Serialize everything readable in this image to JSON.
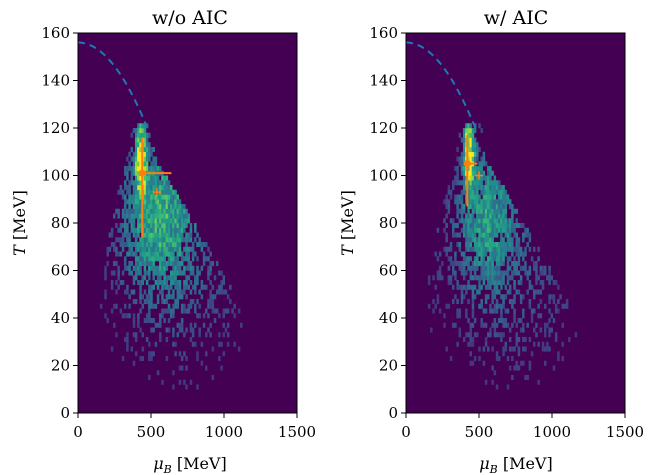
{
  "chart_data": [
    {
      "type": "heatmap",
      "title": "w/o AIC",
      "xlabel": "μ_B [MeV]",
      "ylabel": "T [MeV]",
      "xlim": [
        0,
        1500
      ],
      "ylim": [
        0,
        160
      ],
      "xticks": [
        0,
        500,
        1000,
        1500
      ],
      "yticks": [
        0,
        20,
        40,
        60,
        80,
        100,
        120,
        140,
        160
      ],
      "xtick_labels": [
        "0",
        "500",
        "1000",
        "1500"
      ],
      "ytick_labels": [
        "0",
        "20",
        "40",
        "60",
        "80",
        "100",
        "120",
        "140",
        "160"
      ],
      "colormap": "viridis",
      "background_color": "#440154",
      "peak": {
        "mu_B": 430,
        "T": 108
      },
      "crossover_curve": {
        "T0": 156,
        "mu_end": 475,
        "T_end": 120,
        "color": "#1f77b4",
        "style": "dashed"
      },
      "estimate_marker": {
        "mu_B": 440,
        "T": 101,
        "xerr": [
          20,
          200
        ],
        "yerr": [
          27,
          15
        ],
        "color": "#ff7f0e"
      },
      "true_marker": {
        "mu_B": 540,
        "T": 93,
        "color": "#ff7f0e"
      },
      "spread": 1.0
    },
    {
      "type": "heatmap",
      "title": "w/ AIC",
      "xlabel": "μ_B [MeV]",
      "ylabel": "T [MeV]",
      "xlim": [
        0,
        1500
      ],
      "ylim": [
        0,
        160
      ],
      "xticks": [
        0,
        500,
        1000,
        1500
      ],
      "yticks": [
        0,
        20,
        40,
        60,
        80,
        100,
        120,
        140,
        160
      ],
      "xtick_labels": [
        "0",
        "500",
        "1000",
        "1500"
      ],
      "ytick_labels": [
        "0",
        "20",
        "40",
        "60",
        "80",
        "100",
        "120",
        "140",
        "160"
      ],
      "colormap": "viridis",
      "background_color": "#440154",
      "peak": {
        "mu_B": 430,
        "T": 110
      },
      "crossover_curve": {
        "T0": 156,
        "mu_end": 475,
        "T_end": 120,
        "color": "#1f77b4",
        "style": "dashed"
      },
      "estimate_marker": {
        "mu_B": 420,
        "T": 105,
        "xerr": [
          20,
          70
        ],
        "yerr": [
          18,
          12
        ],
        "color": "#ff7f0e"
      },
      "true_marker": {
        "mu_B": 500,
        "T": 100,
        "color": "#ff7f0e"
      },
      "spread": 0.8
    }
  ]
}
